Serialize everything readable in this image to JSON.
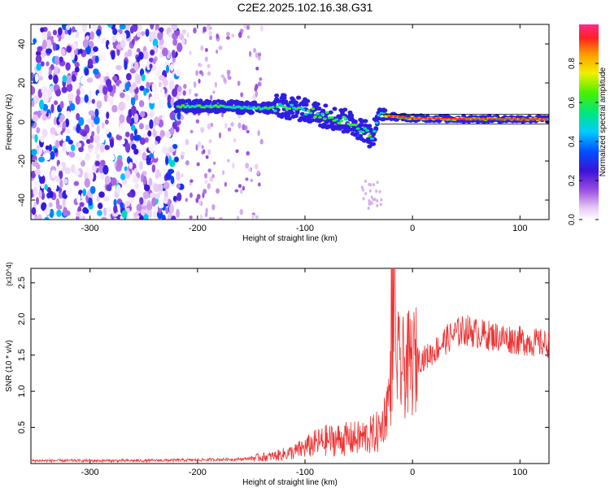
{
  "title": "C2E2.2025.102.16.38.G31",
  "chart_data": [
    {
      "type": "heatmap",
      "xlabel": "Height of straight line (km)",
      "ylabel": "Frequency (Hz)",
      "xlim": [
        -355,
        127
      ],
      "ylim": [
        -50,
        50
      ],
      "xticks": [
        -300,
        -200,
        -100,
        0,
        100
      ],
      "yticks": [
        -40,
        -20,
        0,
        20,
        40
      ],
      "colorbar": {
        "label": "Normalized spectral amplitude",
        "range": [
          0,
          1
        ],
        "ticks": [
          "0.0",
          "0.2",
          "0.4",
          "0.6",
          "0.8"
        ]
      },
      "features": [
        {
          "name": "noise_region",
          "x_range": [
            -355,
            -215
          ],
          "freq_range": [
            -50,
            50
          ],
          "amplitude": 0.15
        },
        {
          "name": "sparse_noise",
          "x_range": [
            -215,
            -140
          ],
          "freq_range": [
            -50,
            50
          ],
          "amplitude": 0.05
        },
        {
          "name": "signal_track",
          "points": [
            [
              -220,
              8
            ],
            [
              -180,
              8
            ],
            [
              -140,
              7
            ],
            [
              -120,
              8
            ],
            [
              -100,
              6
            ],
            [
              -80,
              3
            ],
            [
              -60,
              0
            ],
            [
              -45,
              -4
            ],
            [
              -38,
              -8
            ],
            [
              -30,
              5
            ],
            [
              -25,
              3
            ],
            [
              0,
              2
            ],
            [
              50,
              1.5
            ],
            [
              127,
              1.5
            ]
          ],
          "amplitude": 0.6
        }
      ]
    },
    {
      "type": "line",
      "xlabel": "Height of straight line (km)",
      "ylabel": "SNR (10 * v/v)",
      "yscale_label": "(x10^4)",
      "xlim": [
        -355,
        127
      ],
      "ylim": [
        0,
        2.7
      ],
      "xticks": [
        -300,
        -200,
        -100,
        0,
        100
      ],
      "yticks": [
        0.5,
        1.0,
        1.5,
        2.0,
        2.5
      ],
      "series": [
        {
          "color": "#ee3333",
          "x": [
            -355,
            -300,
            -250,
            -200,
            -160,
            -130,
            -110,
            -100,
            -90,
            -80,
            -70,
            -60,
            -50,
            -40,
            -30,
            -25,
            -20,
            -17,
            -15,
            -12,
            -10,
            -5,
            0,
            10,
            20,
            30,
            40,
            50,
            60,
            80,
            100,
            127
          ],
          "y": [
            0.04,
            0.04,
            0.04,
            0.05,
            0.06,
            0.1,
            0.16,
            0.22,
            0.28,
            0.32,
            0.33,
            0.34,
            0.35,
            0.38,
            0.45,
            0.7,
            1.1,
            1.6,
            1.5,
            1.3,
            1.3,
            1.35,
            1.4,
            1.45,
            1.55,
            1.7,
            1.8,
            1.85,
            1.8,
            1.75,
            1.7,
            1.65
          ]
        }
      ]
    }
  ]
}
